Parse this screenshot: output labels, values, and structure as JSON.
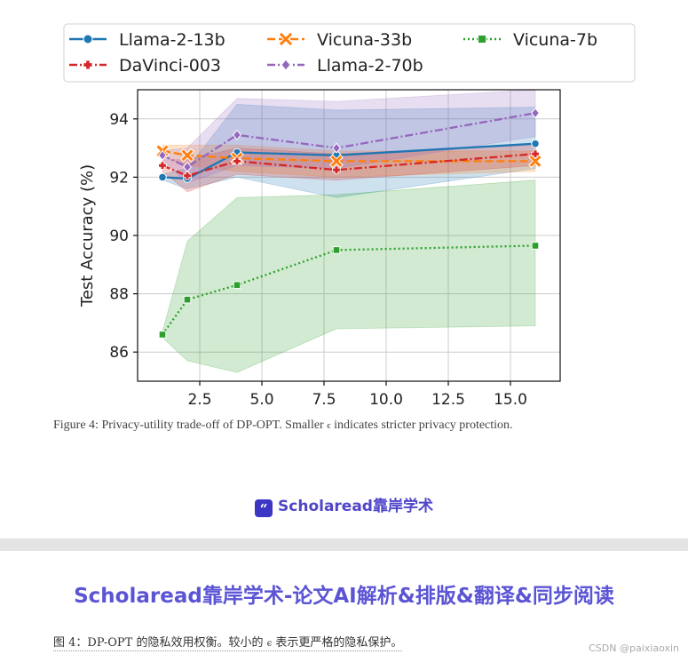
{
  "chart_data": {
    "type": "line",
    "title": "",
    "xlabel": "",
    "ylabel": "Test Accuracy (%)",
    "xlim": [
      0.0,
      17.0
    ],
    "ylim": [
      85.0,
      95.0
    ],
    "xticks": [
      2.5,
      5.0,
      7.5,
      10.0,
      12.5,
      15.0
    ],
    "xtick_labels": [
      "2.5",
      "5.0",
      "7.5",
      "10.0",
      "12.5",
      "15.0"
    ],
    "yticks": [
      86,
      88,
      90,
      92,
      94
    ],
    "ytick_labels": [
      "86",
      "88",
      "90",
      "92",
      "94"
    ],
    "grid": true,
    "legend_position": "top (above plot, 3 columns)",
    "x": [
      1,
      2,
      4,
      8,
      16
    ],
    "series": [
      {
        "name": "Llama-2-13b",
        "color": "#1f77b4",
        "marker": "circle",
        "dash": "solid",
        "values": [
          92.0,
          91.95,
          92.85,
          92.75,
          93.15
        ],
        "band_low": [
          91.9,
          91.6,
          92.0,
          91.3,
          92.3
        ],
        "band_high": [
          92.1,
          92.3,
          94.5,
          94.3,
          94.4
        ]
      },
      {
        "name": "Vicuna-33b",
        "color": "#ff7f0e",
        "marker": "x",
        "dash": "dashed",
        "values": [
          92.9,
          92.75,
          92.65,
          92.55,
          92.55
        ],
        "band_low": [
          92.7,
          92.4,
          92.2,
          92.0,
          92.2
        ],
        "band_high": [
          93.1,
          93.1,
          93.1,
          92.9,
          92.9
        ]
      },
      {
        "name": "Vicuna-7b",
        "color": "#2ca02c",
        "marker": "square",
        "dash": "dotted",
        "values": [
          86.6,
          87.8,
          88.3,
          89.5,
          89.65
        ],
        "band_low": [
          86.5,
          85.7,
          85.3,
          86.8,
          86.9
        ],
        "band_high": [
          86.7,
          89.8,
          91.3,
          91.4,
          91.9
        ]
      },
      {
        "name": "DaVinci-003",
        "color": "#d62728",
        "marker": "plus",
        "dash": "dashdot",
        "values": [
          92.4,
          92.05,
          92.55,
          92.25,
          92.8
        ],
        "band_low": [
          92.2,
          91.5,
          92.1,
          91.9,
          92.4
        ],
        "band_high": [
          92.6,
          92.6,
          93.0,
          92.8,
          93.1
        ]
      },
      {
        "name": "Llama-2-70b",
        "color": "#9467bd",
        "marker": "diamond",
        "dash": "dashdot",
        "values": [
          92.75,
          92.35,
          93.45,
          93.0,
          94.2
        ],
        "band_low": [
          92.6,
          91.8,
          92.4,
          92.3,
          93.4
        ],
        "band_high": [
          92.9,
          93.0,
          94.7,
          94.6,
          95.0
        ]
      }
    ]
  },
  "caption": {
    "label": "Figure 4:",
    "text_before": " Privacy-utility trade-off of DP-OPT. Smaller ",
    "symbol": "ϵ",
    "text_after": " indicates stricter privacy protection."
  },
  "brand": {
    "icon_glyph": "“",
    "text": "Scholaread靠岸学术"
  },
  "heading": "Scholaread靠岸学术-论文AI解析&排版&翻译&同步阅读",
  "translation": {
    "before": "图 4：DP-OPT 的隐私效用权衡。较小的 ",
    "symbol": "ϵ",
    "after": " 表示更严格的隐私保护。"
  },
  "watermark": "CSDN @paixiaoxin",
  "colors": {
    "brand": "#4f46c8",
    "grid": "#cccccc",
    "legend_border": "#d0d0d0"
  }
}
